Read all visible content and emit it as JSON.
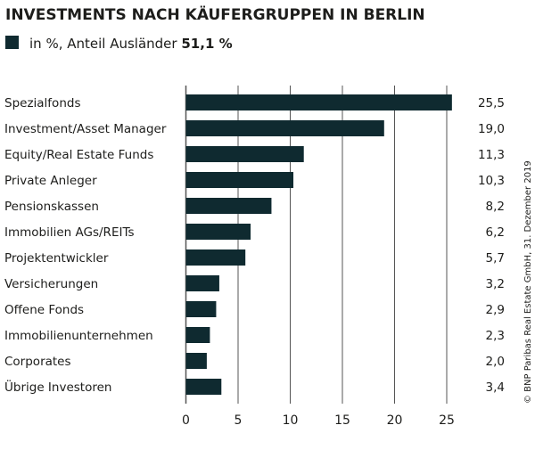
{
  "chart_data": {
    "type": "bar",
    "orientation": "horizontal",
    "title": "INVESTMENTS NACH KÄUFERGRUPPEN IN BERLIN",
    "legend": {
      "label": "in %, Anteil Ausländer",
      "highlight": "51,1 %",
      "position": "top-left"
    },
    "categories": [
      "Spezialfonds",
      "Investment/Asset Manager",
      "Equity/Real Estate Funds",
      "Private Anleger",
      "Pensionskassen",
      "Immobilien AGs/REITs",
      "Projektentwickler",
      "Versicherungen",
      "Offene Fonds",
      "Immobilienunternehmen",
      "Corporates",
      "Übrige Investoren"
    ],
    "values": [
      25.5,
      19.0,
      11.3,
      10.3,
      8.2,
      6.2,
      5.7,
      3.2,
      2.9,
      2.3,
      2.0,
      3.4
    ],
    "value_labels": [
      "25,5",
      "19,0",
      "11,3",
      "10,3",
      "8,2",
      "6,2",
      "5,7",
      "3,2",
      "2,9",
      "2,3",
      "2,0",
      "3,4"
    ],
    "xlim": [
      0,
      25
    ],
    "xticks": [
      "0",
      "5",
      "10",
      "15",
      "20",
      "25"
    ],
    "grid": true,
    "bar_color": "#0f2a30",
    "source": "© BNP Paribas Real Estate GmbH, 31. Dezember 2019"
  }
}
